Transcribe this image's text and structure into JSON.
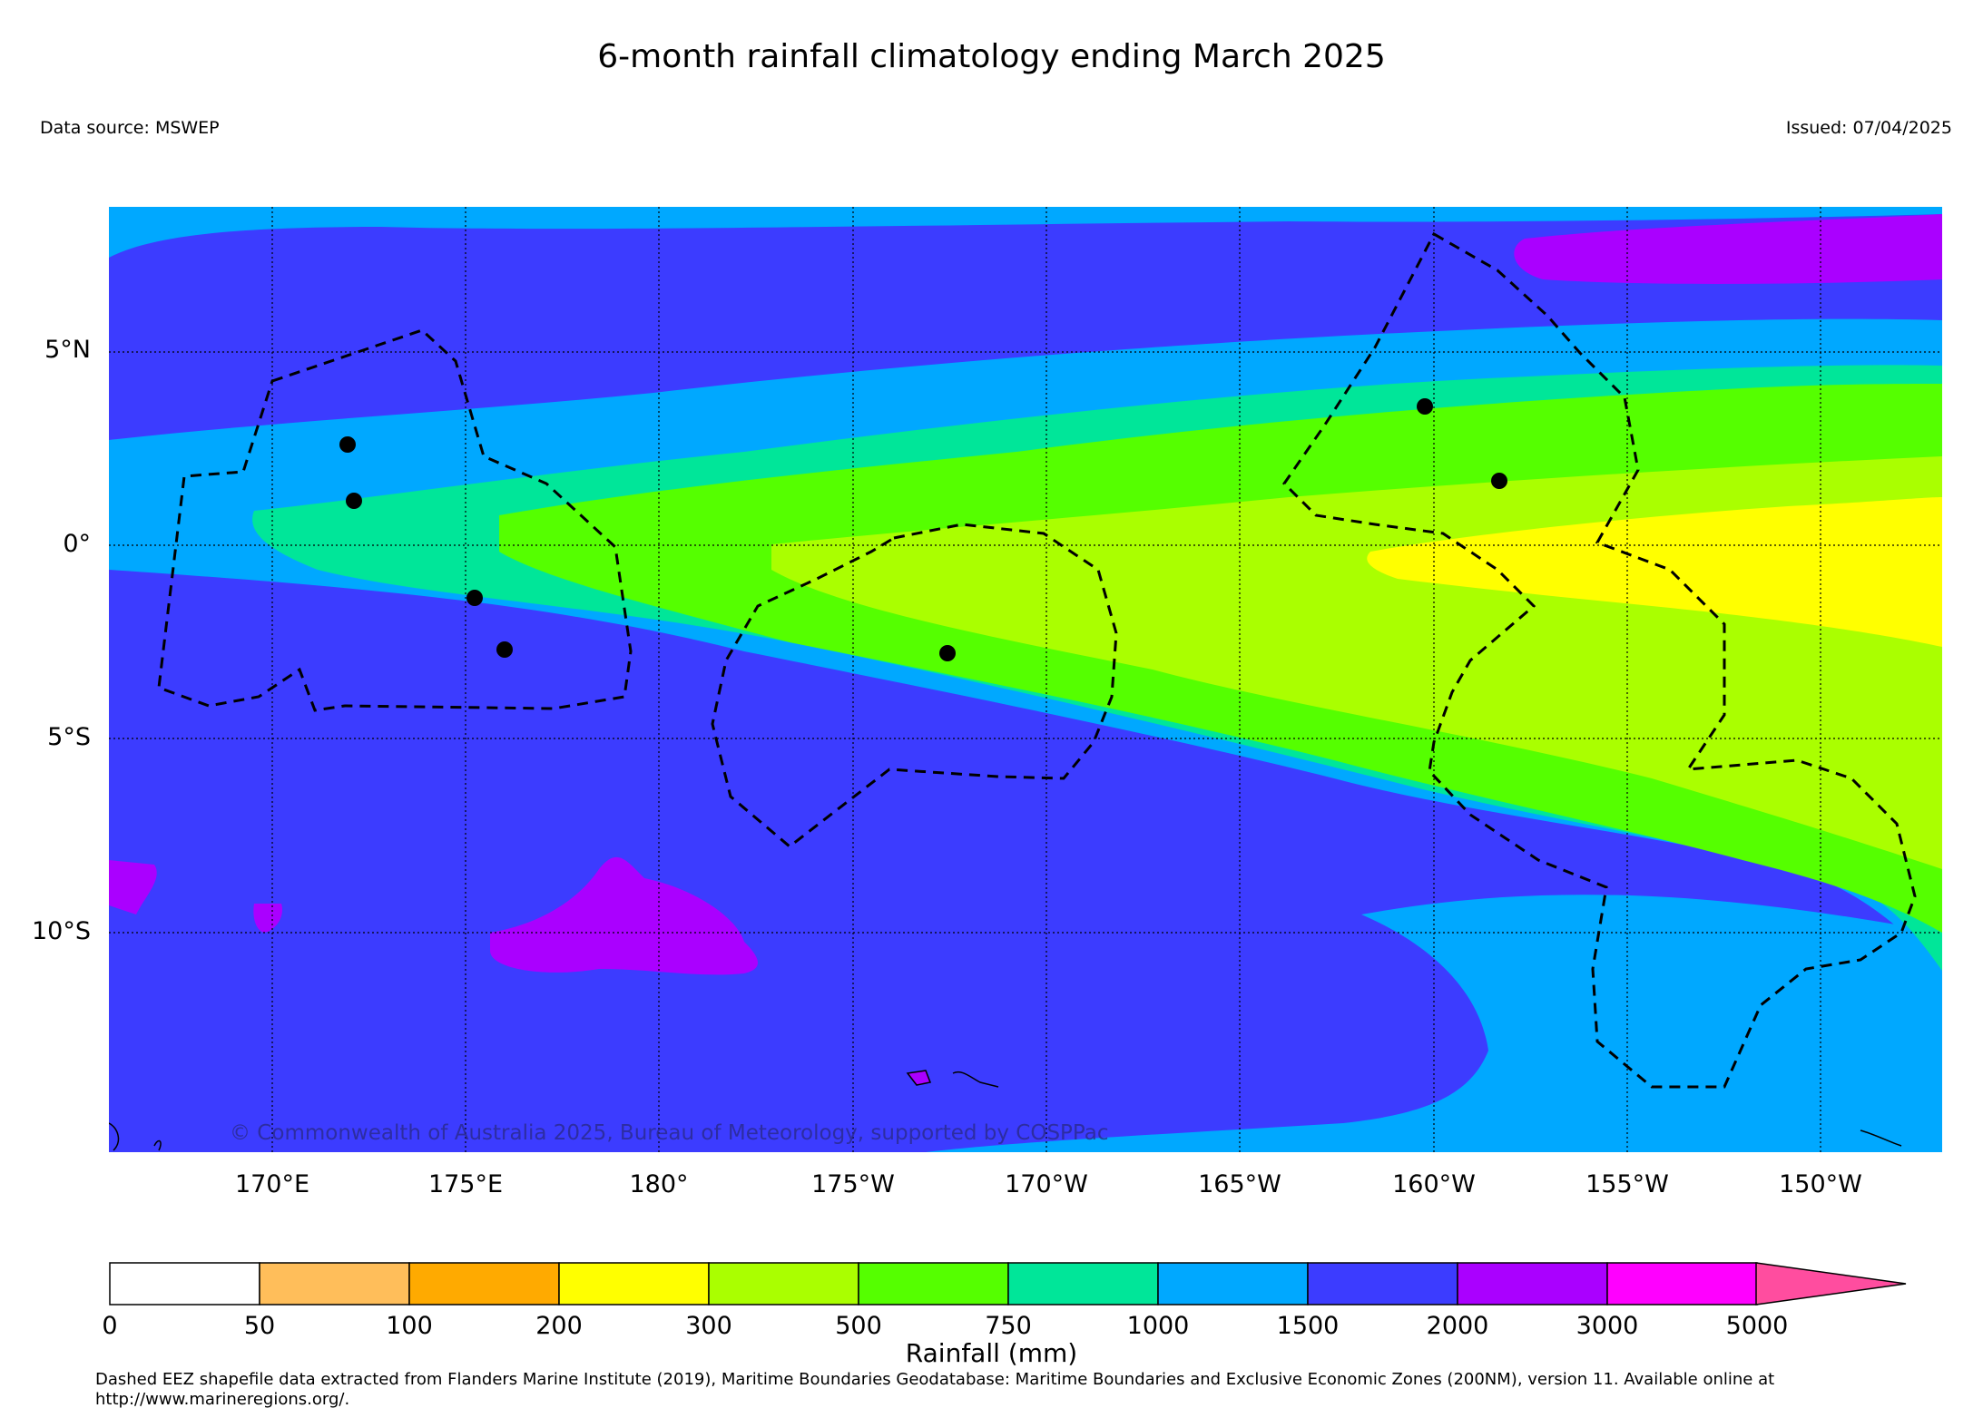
{
  "title": "6-month rainfall climatology ending March 2025",
  "data_source": "Data source: MSWEP",
  "issued": "Issued: 07/04/2025",
  "copyright": "© Commonwealth of Australia 2025, Bureau of Meteorology, supported by COSPPac",
  "map": {
    "lat_labels": [
      "5°N",
      "0°",
      "5°S",
      "10°S"
    ],
    "lon_labels": [
      "170°E",
      "175°E",
      "180°",
      "175°W",
      "170°W",
      "165°W",
      "160°W",
      "155°W",
      "150°W"
    ],
    "graticule_style": "dotted",
    "eez_boundary_style": "dashed black",
    "features": [
      "rainfall contours",
      "EEZ boundaries",
      "coastlines",
      "station dots"
    ]
  },
  "colorbar": {
    "label": "Rainfall (mm)",
    "ticks": [
      "0",
      "50",
      "100",
      "200",
      "300",
      "500",
      "750",
      "1000",
      "1500",
      "2000",
      "3000",
      "5000"
    ],
    "colors": [
      "#ffffff",
      "#ffbe5a",
      "#ffaa00",
      "#ffff00",
      "#aaff00",
      "#55ff00",
      "#00e699",
      "#00a8ff",
      "#3c3cff",
      "#aa00ff",
      "#ff00ff",
      "#ff4d9f"
    ],
    "extend": "max"
  },
  "credit": "Dashed EEZ shapefile data extracted from Flanders Marine Institute (2019), Maritime Boundaries Geodatabase: Maritime Boundaries and Exclusive Economic Zones (200NM), version 11. Available online at http://www.marineregions.org/."
}
